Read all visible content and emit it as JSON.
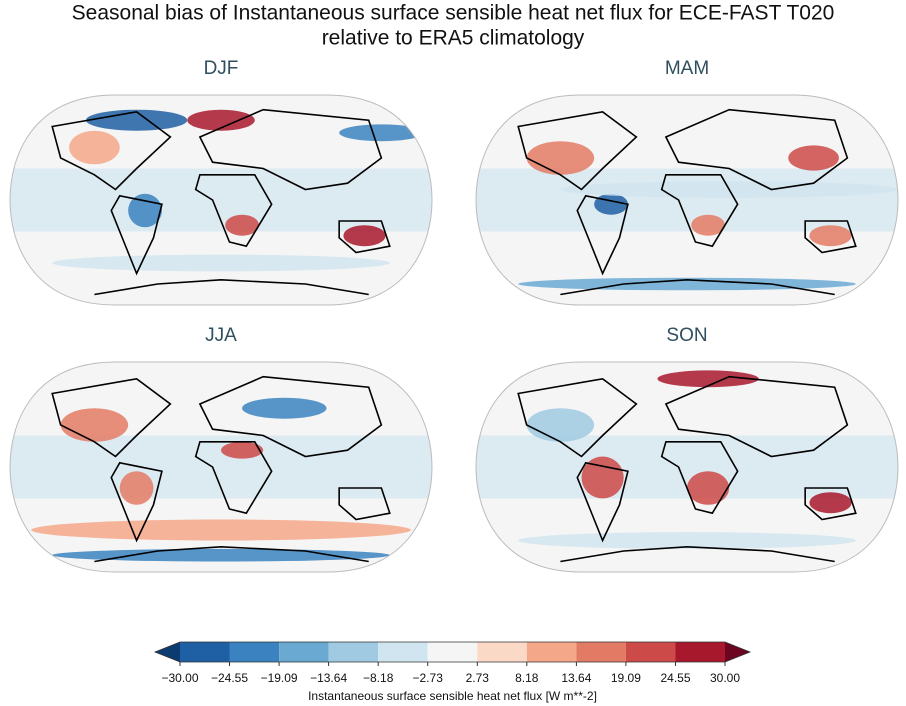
{
  "figure": {
    "title": [
      "Seasonal bias of Instantaneous surface sensible heat net flux for ECE-FAST T020",
      "relative to ERA5 climatology"
    ],
    "panels": [
      "DJF",
      "MAM",
      "JJA",
      "SON"
    ],
    "colorbar": {
      "label": "Instantaneous surface sensible heat net flux [W m**-2]",
      "ticks": [
        {
          "value": -30,
          "label": "−30.00"
        },
        {
          "value": -24.55,
          "label": "−24.55"
        },
        {
          "value": -19.09,
          "label": "−19.09"
        },
        {
          "value": -13.64,
          "label": "−13.64"
        },
        {
          "value": -8.18,
          "label": "−8.18"
        },
        {
          "value": -2.73,
          "label": "−2.73"
        },
        {
          "value": 2.73,
          "label": "2.73"
        },
        {
          "value": 8.18,
          "label": "8.18"
        },
        {
          "value": 13.64,
          "label": "13.64"
        },
        {
          "value": 19.09,
          "label": "19.09"
        },
        {
          "value": 24.55,
          "label": "24.55"
        },
        {
          "value": 30,
          "label": "30.00"
        }
      ],
      "colors": [
        "#1f5fa3",
        "#3b83c0",
        "#6aa9d2",
        "#9fcae1",
        "#d1e5f0",
        "#f5f5f5",
        "#fbd9c7",
        "#f4a889",
        "#e37b64",
        "#cc4a47",
        "#a8182c"
      ],
      "extend_colors": [
        "#0b3b70",
        "#6b0520"
      ]
    }
  }
}
